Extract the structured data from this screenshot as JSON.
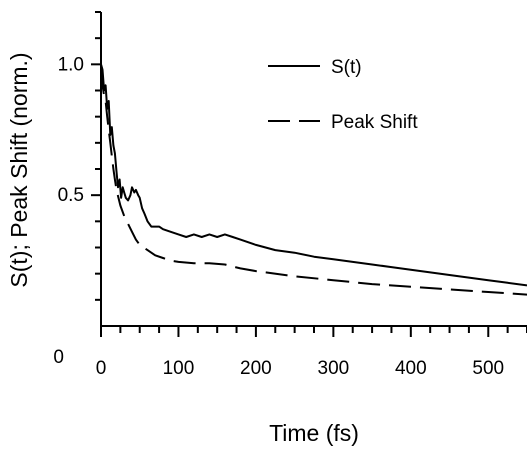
{
  "chart_data": {
    "type": "line",
    "title": "",
    "xlabel": "Time (fs)",
    "ylabel": "S(t); Peak Shift (norm.)",
    "xlim": [
      0,
      550
    ],
    "ylim": [
      0,
      1.2
    ],
    "x_ticks": [
      0,
      100,
      200,
      300,
      400,
      500
    ],
    "x_tick_labels": [
      "0",
      "100",
      "200",
      "300",
      "400",
      "500"
    ],
    "x_minor_step": 25,
    "y_ticks": [
      0,
      0.5,
      1.0
    ],
    "y_tick_labels": [
      "0",
      "0.5",
      "1.0"
    ],
    "y_minor_step": 0.1,
    "grid": false,
    "legend": "top-right",
    "series": [
      {
        "name": "S(t)",
        "style": "solid",
        "color": "#000000",
        "x": [
          0,
          2,
          4,
          6,
          8,
          10,
          12,
          14,
          16,
          18,
          20,
          22,
          24,
          26,
          28,
          30,
          32,
          35,
          38,
          40,
          43,
          45,
          48,
          50,
          53,
          56,
          60,
          65,
          70,
          75,
          80,
          90,
          100,
          110,
          120,
          130,
          140,
          150,
          160,
          170,
          180,
          200,
          225,
          250,
          275,
          300,
          325,
          350,
          375,
          400,
          425,
          450,
          475,
          500,
          525,
          550
        ],
        "values": [
          1.0,
          0.98,
          0.9,
          0.92,
          0.83,
          0.86,
          0.73,
          0.76,
          0.69,
          0.66,
          0.59,
          0.53,
          0.56,
          0.49,
          0.53,
          0.51,
          0.49,
          0.48,
          0.5,
          0.53,
          0.51,
          0.52,
          0.5,
          0.49,
          0.45,
          0.43,
          0.4,
          0.38,
          0.38,
          0.38,
          0.37,
          0.36,
          0.35,
          0.34,
          0.35,
          0.34,
          0.35,
          0.34,
          0.35,
          0.34,
          0.33,
          0.31,
          0.29,
          0.28,
          0.265,
          0.255,
          0.245,
          0.235,
          0.225,
          0.215,
          0.205,
          0.195,
          0.185,
          0.175,
          0.165,
          0.155
        ]
      },
      {
        "name": "Peak Shift",
        "style": "dashed",
        "color": "#000000",
        "x": [
          0,
          2,
          4,
          6,
          8,
          10,
          12,
          14,
          16,
          18,
          20,
          25,
          30,
          35,
          40,
          45,
          50,
          55,
          60,
          70,
          80,
          90,
          100,
          120,
          140,
          160,
          180,
          200,
          250,
          300,
          350,
          400,
          450,
          500,
          550
        ],
        "values": [
          0.97,
          0.92,
          0.88,
          0.86,
          0.8,
          0.75,
          0.7,
          0.65,
          0.6,
          0.56,
          0.52,
          0.46,
          0.42,
          0.39,
          0.36,
          0.33,
          0.31,
          0.3,
          0.29,
          0.27,
          0.26,
          0.25,
          0.245,
          0.24,
          0.24,
          0.235,
          0.22,
          0.21,
          0.19,
          0.175,
          0.16,
          0.15,
          0.14,
          0.13,
          0.12
        ]
      }
    ]
  }
}
